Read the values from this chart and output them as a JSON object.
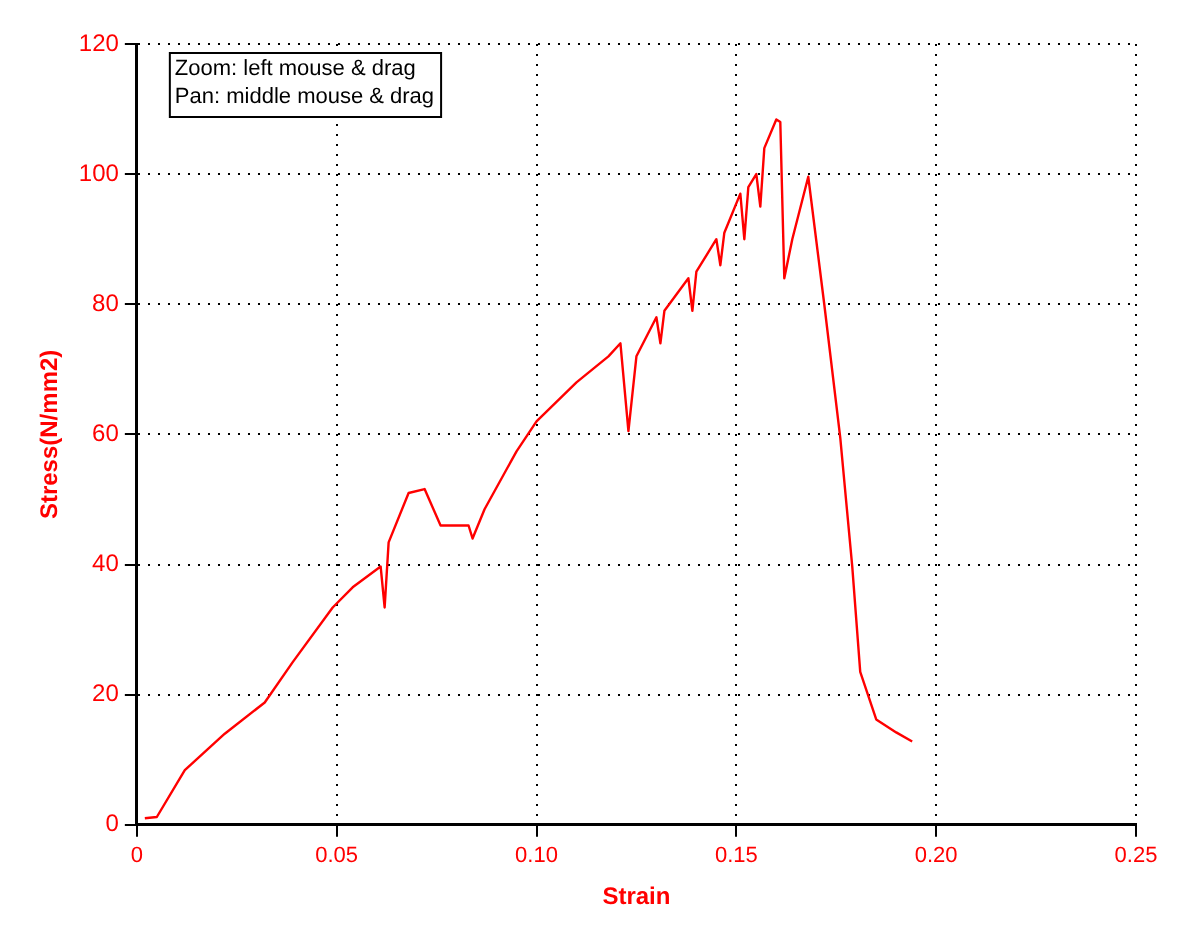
{
  "chart_data": {
    "type": "line",
    "xlabel": "Strain",
    "ylabel": "Stress(N/mm2)",
    "annotations": [
      "Zoom: left mouse & drag",
      "Pan: middle mouse & drag"
    ],
    "xlim": [
      0,
      0.25
    ],
    "xticks": [
      0,
      0.05,
      {
        "value": 0.1,
        "label": "0.10"
      },
      0.15,
      {
        "value": 0.2,
        "label": "0.20"
      },
      0.25
    ],
    "ylim": [
      0,
      120
    ],
    "yticks": [
      0,
      20,
      40,
      60,
      80,
      100,
      120
    ],
    "grid": true,
    "marker": "none",
    "line_style": "solid",
    "series": [
      {
        "color": "#ff0000",
        "x": [
          0.002,
          0.005,
          0.012,
          0.022,
          0.032,
          0.039,
          0.049,
          0.054,
          0.061,
          0.062,
          0.063,
          0.068,
          0.072,
          0.076,
          0.083,
          0.084,
          0.087,
          0.095,
          0.1,
          0.105,
          0.11,
          0.118,
          0.121,
          0.123,
          0.125,
          0.13,
          0.131,
          0.132,
          0.138,
          0.139,
          0.14,
          0.145,
          0.146,
          0.147,
          0.151,
          0.152,
          0.153,
          0.155,
          0.156,
          0.157,
          0.16,
          0.161,
          0.162,
          0.164,
          0.168,
          0.172,
          0.176,
          0.179,
          0.181,
          0.185,
          0.19,
          0.194
        ],
        "values": [
          1,
          1.2,
          8.4,
          14,
          18.8,
          25,
          33.4,
          36.5,
          39.7,
          33.4,
          43.4,
          51,
          51.6,
          46,
          46,
          44,
          48.5,
          57.4,
          62,
          65,
          68,
          72,
          74,
          60.5,
          72,
          78,
          74,
          79,
          84,
          79,
          85,
          90,
          86,
          91,
          97,
          90,
          98,
          100,
          95,
          104,
          108.4,
          108,
          84,
          90,
          99.6,
          80,
          59.5,
          39.7,
          23.5,
          16.2,
          14.2,
          12.8
        ]
      }
    ]
  }
}
